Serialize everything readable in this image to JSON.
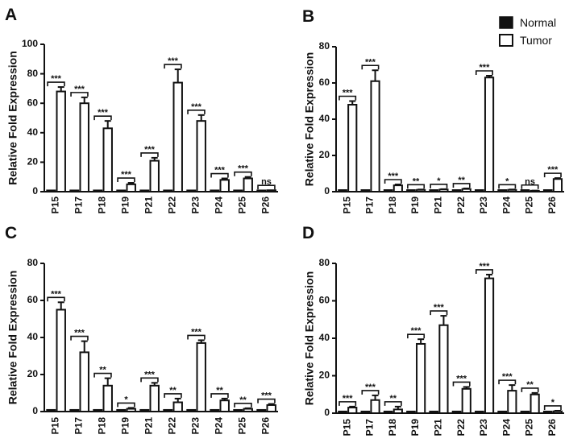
{
  "legend": {
    "series": [
      "Normal",
      "Tumor"
    ],
    "colors": {
      "Normal": "#111111",
      "Tumor": "#ffffff"
    }
  },
  "chart_data": [
    {
      "panel": "A",
      "type": "bar",
      "categories": [
        "P15",
        "P17",
        "P18",
        "P19",
        "P21",
        "P22",
        "P23",
        "P24",
        "P25",
        "P26"
      ],
      "series": [
        {
          "name": "Normal",
          "values": [
            1,
            1,
            1,
            1,
            1,
            1,
            1,
            1,
            1,
            1
          ],
          "errors": [
            0,
            0,
            0,
            0,
            0,
            0,
            0,
            0,
            0,
            0
          ]
        },
        {
          "name": "Tumor",
          "values": [
            68,
            60,
            43,
            5,
            21,
            74,
            48,
            8,
            9,
            1
          ],
          "errors": [
            3,
            4,
            5,
            1,
            2,
            9,
            4,
            1,
            1,
            0
          ]
        }
      ],
      "significance": [
        "***",
        "***",
        "***",
        "***",
        "***",
        "***",
        "***",
        "***",
        "***",
        "ns"
      ],
      "ylabel": "Relative Fold Expression",
      "ylim": [
        0,
        100
      ],
      "yticks": [
        0,
        20,
        40,
        60,
        80,
        100
      ]
    },
    {
      "panel": "B",
      "type": "bar",
      "categories": [
        "P15",
        "P17",
        "P18",
        "P19",
        "P21",
        "P22",
        "P23",
        "P24",
        "P25",
        "P26"
      ],
      "series": [
        {
          "name": "Normal",
          "values": [
            1,
            1,
            1,
            1,
            1,
            1,
            1,
            1,
            1,
            1
          ],
          "errors": [
            0,
            0,
            0,
            0,
            0,
            0,
            0,
            0,
            0,
            0
          ]
        },
        {
          "name": "Tumor",
          "values": [
            48,
            61,
            3.5,
            1,
            1.2,
            1.5,
            63,
            1,
            0.5,
            7
          ],
          "errors": [
            2,
            6,
            0.5,
            0.2,
            0.2,
            0.3,
            1,
            0.2,
            0.1,
            0.5
          ]
        }
      ],
      "significance": [
        "***",
        "***",
        "***",
        "**",
        "*",
        "**",
        "***",
        "*",
        "ns",
        "***"
      ],
      "ylabel": "Relative Fold Expression",
      "ylim": [
        0,
        80
      ],
      "yticks": [
        0,
        20,
        40,
        60,
        80
      ]
    },
    {
      "panel": "C",
      "type": "bar",
      "categories": [
        "P15",
        "P17",
        "P18",
        "P19",
        "P21",
        "P22",
        "P23",
        "P24",
        "P25",
        "P26"
      ],
      "series": [
        {
          "name": "Normal",
          "values": [
            1,
            1,
            1,
            1,
            1,
            1,
            1,
            1,
            1,
            1
          ],
          "errors": [
            0,
            0,
            0,
            0,
            0,
            0,
            0,
            0,
            0,
            0
          ]
        },
        {
          "name": "Tumor",
          "values": [
            55,
            32,
            14,
            1.5,
            14,
            5,
            37,
            6,
            1.5,
            3.5
          ],
          "errors": [
            4,
            6,
            4,
            0.5,
            1.5,
            2,
            1.5,
            1,
            0.3,
            0.6
          ]
        }
      ],
      "significance": [
        "***",
        "***",
        "**",
        "*",
        "***",
        "**",
        "***",
        "**",
        "**",
        "***"
      ],
      "ylabel": "Relative Fold Expression",
      "ylim": [
        0,
        80
      ],
      "yticks": [
        0,
        20,
        40,
        60,
        80
      ]
    },
    {
      "panel": "D",
      "type": "bar",
      "categories": [
        "P15",
        "P17",
        "P18",
        "P19",
        "P21",
        "P22",
        "P23",
        "P24",
        "P25",
        "P26"
      ],
      "series": [
        {
          "name": "Normal",
          "values": [
            1,
            1,
            1,
            1,
            1,
            1,
            1,
            1,
            1,
            1
          ],
          "errors": [
            0,
            0,
            0,
            0,
            0,
            0,
            0,
            0,
            0,
            0
          ]
        },
        {
          "name": "Tumor",
          "values": [
            3,
            7,
            2,
            37,
            47,
            13,
            72,
            12,
            10,
            1
          ],
          "errors": [
            0.5,
            2.5,
            1.5,
            2.5,
            5,
            1,
            2,
            3,
            0.8,
            0.3
          ]
        }
      ],
      "significance": [
        "***",
        "***",
        "**",
        "***",
        "***",
        "***",
        "***",
        "***",
        "**",
        "*"
      ],
      "ylabel": "Relative Fold Expression",
      "ylim": [
        0,
        80
      ],
      "yticks": [
        0,
        20,
        40,
        60,
        80
      ]
    }
  ]
}
